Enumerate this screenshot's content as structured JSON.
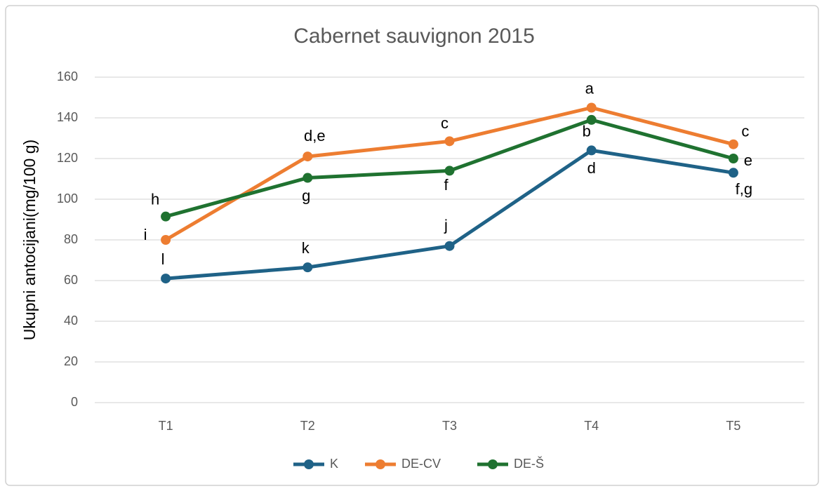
{
  "chart_data": {
    "type": "line",
    "title": "Cabernet sauvignon 2015",
    "y_label": "Ukupni antocijani(mg/100 g)",
    "categories": [
      "T1",
      "T2",
      "T3",
      "T4",
      "T5"
    ],
    "ylim": [
      0,
      160
    ],
    "yticks": [
      0,
      20,
      40,
      60,
      80,
      100,
      120,
      140,
      160
    ],
    "grid": true,
    "legend": "bottom",
    "series": [
      {
        "name": "K",
        "color": "#1f6287",
        "values": [
          61,
          66.5,
          77,
          124,
          113
        ],
        "annotations": [
          "l",
          "k",
          "j",
          "d",
          "f,g"
        ]
      },
      {
        "name": "DE-CV",
        "color": "#ed7d31",
        "values": [
          80,
          121,
          128.5,
          145,
          127
        ],
        "annotations": [
          "i",
          "d,e",
          "c",
          "a",
          "c"
        ]
      },
      {
        "name": "DE-Š",
        "color": "#1f7230",
        "values": [
          91.5,
          110.5,
          114,
          139,
          120
        ],
        "annotations": [
          "h",
          "g",
          "f",
          "b",
          "e"
        ]
      }
    ]
  }
}
